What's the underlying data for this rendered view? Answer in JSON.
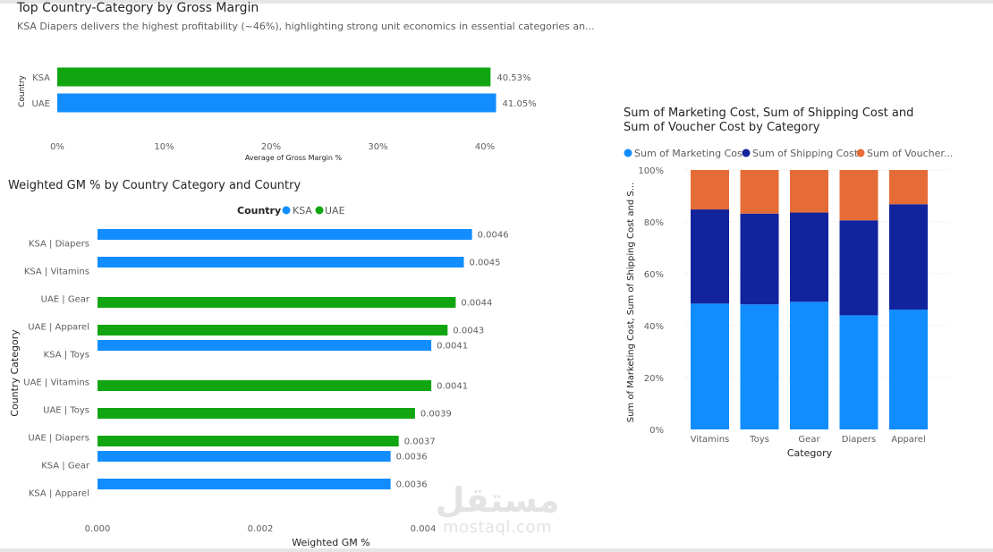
{
  "colors": {
    "ksa": "#118DFF",
    "uae": "#11A611",
    "marketing": "#118DFF",
    "shipping": "#12239E",
    "voucher": "#E66C37",
    "grid": "#e6e6e6",
    "axis_text": "#605e5c"
  },
  "panels": {
    "gross_margin": {
      "title": "Top Country-Category by Gross Margin",
      "subtitle": "KSA Diapers delivers the highest profitability (~46%), highlighting strong unit economics in essential categories an..."
    },
    "weighted_gm": {
      "title": "Weighted GM % by Country Category and Country"
    },
    "costs": {
      "title_line1": "Sum of Marketing Cost, Sum of Shipping Cost and",
      "title_line2": "Sum of Voucher Cost by Category"
    }
  },
  "watermark": {
    "arabic": "مستقل",
    "latin": "mostaql.com"
  },
  "chart_data": [
    {
      "id": "gross_margin",
      "type": "bar",
      "orientation": "horizontal",
      "categories": [
        "KSA",
        "UAE"
      ],
      "values": [
        40.53,
        41.05
      ],
      "data_labels": [
        "40.53%",
        "41.05%"
      ],
      "category_colors": [
        "uae",
        "ksa"
      ],
      "xlabel": "Average of Gross Margin %",
      "ylabel": "Country",
      "xlim": [
        0,
        43
      ],
      "xticks": [
        0,
        10,
        20,
        30,
        40
      ],
      "xtick_labels": [
        "0%",
        "10%",
        "20%",
        "30%",
        "40%"
      ]
    },
    {
      "id": "weighted_gm",
      "type": "bar",
      "orientation": "horizontal",
      "legend_title": "Country",
      "legend": [
        "KSA",
        "UAE"
      ],
      "categories": [
        "KSA | Diapers",
        "KSA | Vitamins",
        "UAE | Gear",
        "UAE | Apparel",
        "KSA | Toys",
        "UAE | Vitamins",
        "UAE | Toys",
        "UAE | Diapers",
        "KSA | Gear",
        "KSA | Apparel"
      ],
      "series": [
        {
          "name": "KSA",
          "values": [
            0.0046,
            0.0045,
            null,
            null,
            0.0041,
            null,
            null,
            null,
            0.0036,
            0.0036
          ]
        },
        {
          "name": "UAE",
          "values": [
            null,
            null,
            0.0044,
            0.0043,
            null,
            0.0041,
            0.0039,
            0.0037,
            null,
            null
          ]
        }
      ],
      "data_labels": [
        "0.0046",
        "0.0045",
        "0.0044",
        "0.0043",
        "0.0041",
        "0.0041",
        "0.0039",
        "0.0037",
        "0.0036",
        "0.0036"
      ],
      "xlabel": "Weighted GM %",
      "ylabel": "Country Category",
      "xlim": [
        0,
        0.0045
      ],
      "xticks": [
        0,
        0.002,
        0.004
      ],
      "xtick_labels": [
        "0.000",
        "0.002",
        "0.004"
      ]
    },
    {
      "id": "costs",
      "type": "bar",
      "stacked": "100%",
      "categories": [
        "Vitamins",
        "Toys",
        "Gear",
        "Diapers",
        "Apparel"
      ],
      "series": [
        {
          "name": "Sum of Marketing Cost",
          "values": [
            48.5,
            48.2,
            49.2,
            44.0,
            46.2
          ]
        },
        {
          "name": "Sum of Shipping Cost",
          "values": [
            36.3,
            35.0,
            34.4,
            36.6,
            40.6
          ]
        },
        {
          "name": "Sum of Voucher Cost",
          "values": [
            15.2,
            16.8,
            16.4,
            19.4,
            13.2
          ]
        }
      ],
      "legend_labels": [
        "Sum of Marketing Cost",
        "Sum of Shipping Cost",
        "Sum of Voucher..."
      ],
      "xlabel": "Category",
      "ylabel": "Sum of Marketing Cost, Sum of Shipping Cost and S...",
      "ylim": [
        0,
        100
      ],
      "yticks": [
        0,
        20,
        40,
        60,
        80,
        100
      ],
      "ytick_labels": [
        "0%",
        "20%",
        "40%",
        "60%",
        "80%",
        "100%"
      ]
    }
  ]
}
